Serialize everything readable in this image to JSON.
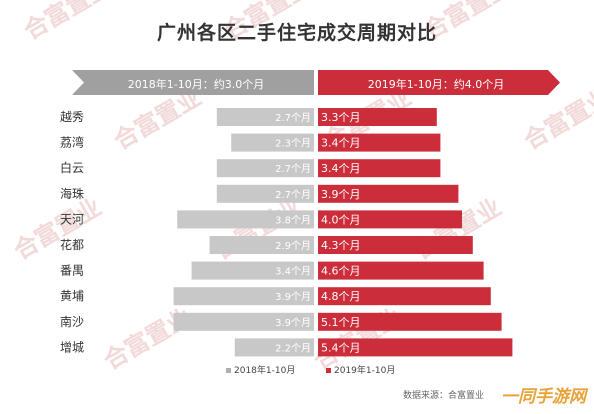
{
  "page": {
    "title": "广州各区二手住宅成交周期对比",
    "source": "数据来源：合富置业",
    "brand": "一同手游网"
  },
  "watermark_text": "合富置业",
  "colors": {
    "left_bar": "#c8c8c8",
    "right_bar": "#cc2d3a",
    "left_banner": "#a0a0a0",
    "right_banner": "#cc2d3a",
    "left_text": "#ffffff",
    "right_text": "#ffffff",
    "watermark": "#f3dada"
  },
  "chart_data": {
    "type": "bar",
    "orientation": "horizontal-butterfly",
    "title": "广州各区二手住宅成交周期对比",
    "categories": [
      "越秀",
      "荔湾",
      "白云",
      "海珠",
      "天河",
      "花都",
      "番禺",
      "黄埔",
      "南沙",
      "增城"
    ],
    "series": [
      {
        "name": "2018年1-10月",
        "banner": "2018年1-10月：约3.0个月",
        "values": [
          2.7,
          2.3,
          2.7,
          2.7,
          3.8,
          2.9,
          3.4,
          3.9,
          3.9,
          2.2
        ]
      },
      {
        "name": "2019年1-10月",
        "banner": "2019年1-10月：约4.0个月",
        "values": [
          3.3,
          3.4,
          3.4,
          3.9,
          4.0,
          4.3,
          4.6,
          4.8,
          5.1,
          5.4
        ]
      }
    ],
    "unit": "个月",
    "legend": {
      "position": "bottom-center",
      "items": [
        "2018年1-10月",
        "2019年1-10月"
      ]
    },
    "grid": false
  }
}
